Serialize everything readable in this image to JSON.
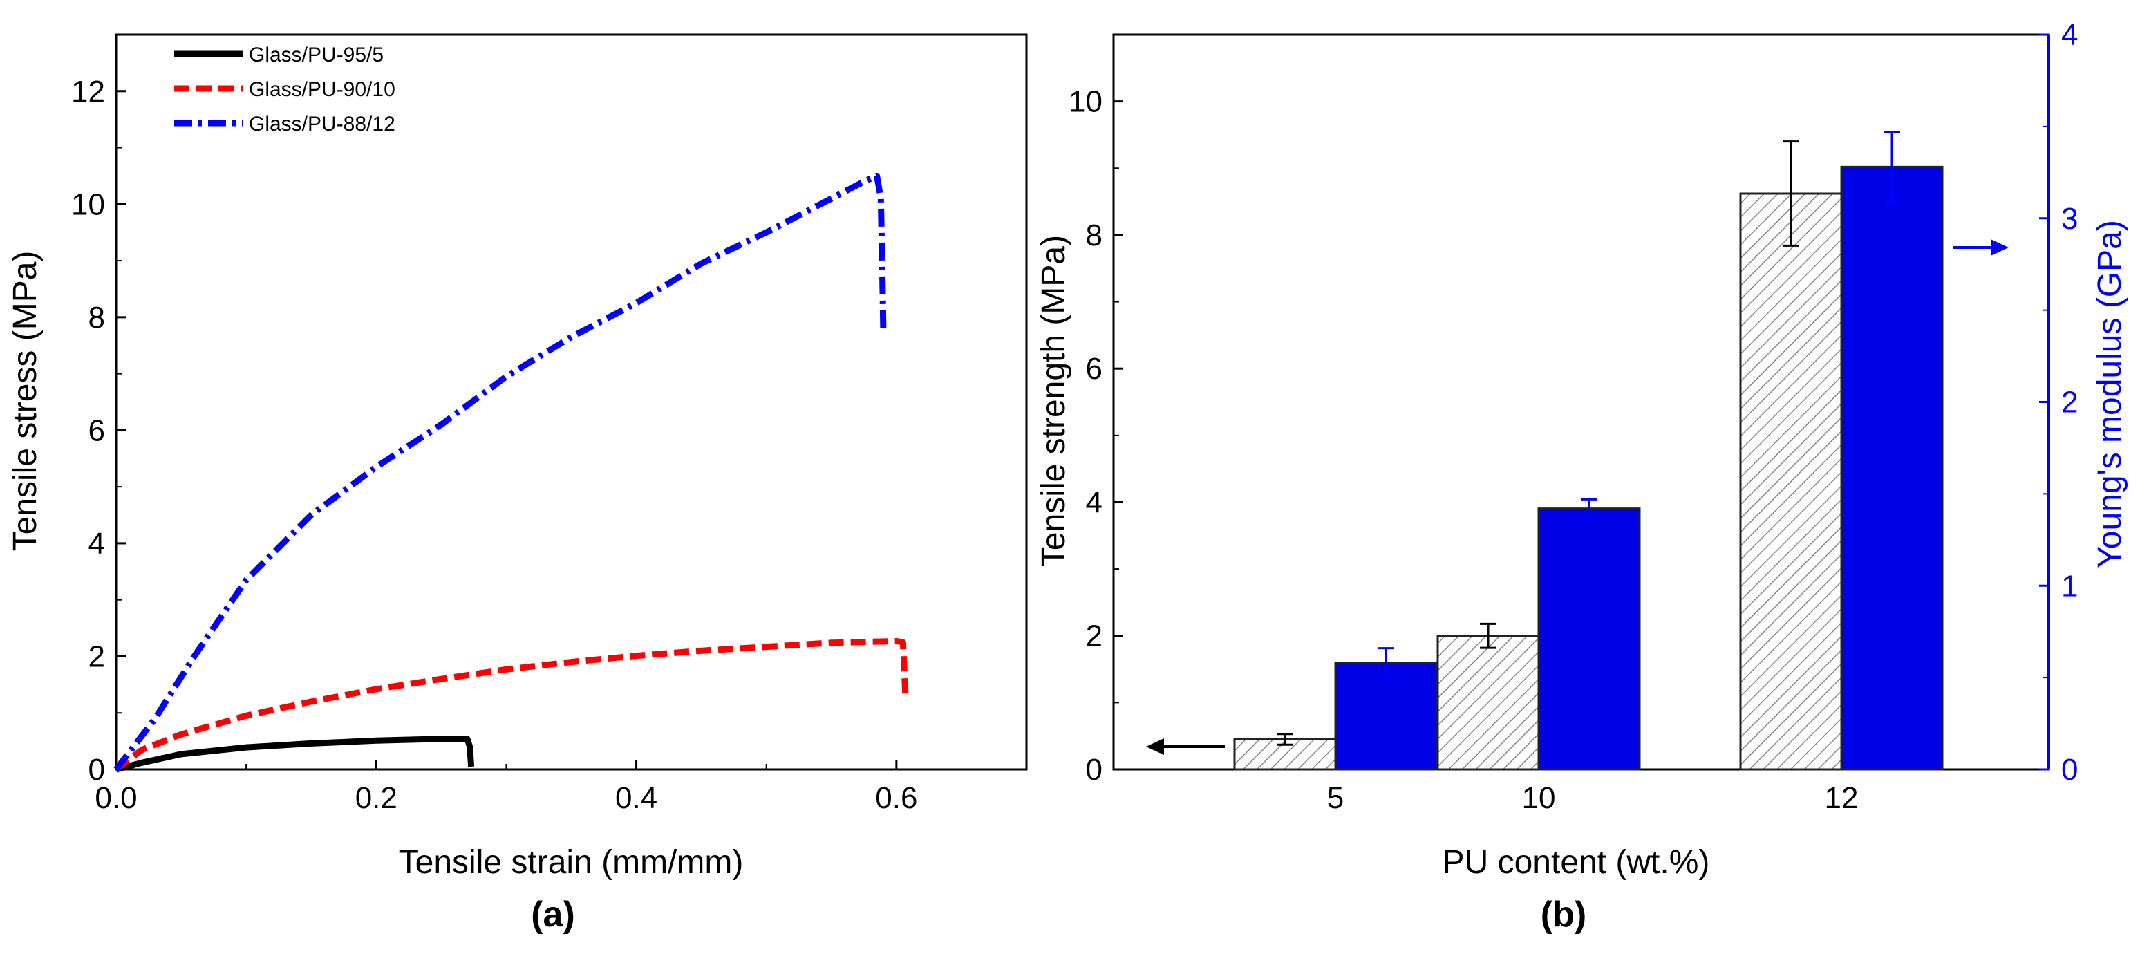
{
  "colors": {
    "black": "#000000",
    "red": "#ff0000",
    "blue": "#0000ff",
    "bar_blue": "#0000e6",
    "hatch_gray": "#888888",
    "bar_outline": "#222222"
  },
  "chart_data": [
    {
      "panel_label": "(a)",
      "type": "line",
      "xlabel": "Tensile strain (mm/mm)",
      "ylabel": "Tensile stress (MPa)",
      "xlim": [
        0.0,
        0.7
      ],
      "ylim": [
        0,
        13
      ],
      "xticks": [
        "0.0",
        "0.2",
        "0.4",
        "0.6"
      ],
      "yticks": [
        "0",
        "2",
        "4",
        "6",
        "8",
        "10",
        "12"
      ],
      "legend_position": "top-left",
      "series": [
        {
          "name": "Glass/PU-95/5",
          "color": "#000000",
          "style": "solid",
          "points": [
            [
              0,
              0
            ],
            [
              0.02,
              0.12
            ],
            [
              0.05,
              0.27
            ],
            [
              0.1,
              0.39
            ],
            [
              0.15,
              0.46
            ],
            [
              0.2,
              0.51
            ],
            [
              0.25,
              0.54
            ],
            [
              0.27,
              0.54
            ],
            [
              0.272,
              0.4
            ],
            [
              0.273,
              0.05
            ]
          ]
        },
        {
          "name": "Glass/PU-90/10",
          "color": "#ff0000",
          "style": "dash",
          "points": [
            [
              0,
              0
            ],
            [
              0.02,
              0.35
            ],
            [
              0.05,
              0.62
            ],
            [
              0.1,
              0.95
            ],
            [
              0.15,
              1.2
            ],
            [
              0.2,
              1.42
            ],
            [
              0.25,
              1.6
            ],
            [
              0.3,
              1.77
            ],
            [
              0.35,
              1.9
            ],
            [
              0.4,
              2.01
            ],
            [
              0.45,
              2.1
            ],
            [
              0.5,
              2.17
            ],
            [
              0.55,
              2.24
            ],
            [
              0.6,
              2.27
            ],
            [
              0.605,
              2.25
            ],
            [
              0.606,
              1.8
            ],
            [
              0.607,
              1.25
            ]
          ]
        },
        {
          "name": "Glass/PU-88/12",
          "color": "#0000ff",
          "style": "dashdot",
          "points": [
            [
              0,
              0
            ],
            [
              0.03,
              0.9
            ],
            [
              0.06,
              2.0
            ],
            [
              0.1,
              3.35
            ],
            [
              0.15,
              4.5
            ],
            [
              0.2,
              5.35
            ],
            [
              0.25,
              6.1
            ],
            [
              0.3,
              6.95
            ],
            [
              0.35,
              7.65
            ],
            [
              0.4,
              8.25
            ],
            [
              0.45,
              8.95
            ],
            [
              0.5,
              9.5
            ],
            [
              0.55,
              10.1
            ],
            [
              0.575,
              10.4
            ],
            [
              0.585,
              10.5
            ],
            [
              0.588,
              10.1
            ],
            [
              0.589,
              9.0
            ],
            [
              0.59,
              7.7
            ]
          ]
        }
      ]
    },
    {
      "panel_label": "(b)",
      "type": "bar",
      "xlabel": "PU content (wt.%)",
      "ylabel": "Tensile strength (MPa)",
      "ylabel_right": "Young's modulus (GPa)",
      "categories": [
        "5",
        "10",
        "12"
      ],
      "ylim": [
        0,
        11
      ],
      "ylim_right": [
        0,
        4
      ],
      "yticks": [
        "0",
        "2",
        "4",
        "6",
        "8",
        "10"
      ],
      "yticks_right": [
        "0",
        "1",
        "2",
        "3",
        "4"
      ],
      "series": [
        {
          "axis": "left",
          "fill": "hatched",
          "values": [
            0.45,
            2.0,
            8.62
          ],
          "errors": [
            0.08,
            0.18,
            0.78
          ]
        },
        {
          "axis": "right",
          "fill": "#0000e6",
          "values": [
            0.58,
            1.42,
            3.28
          ],
          "errors": [
            0.08,
            0.05,
            0.19
          ]
        }
      ]
    }
  ]
}
